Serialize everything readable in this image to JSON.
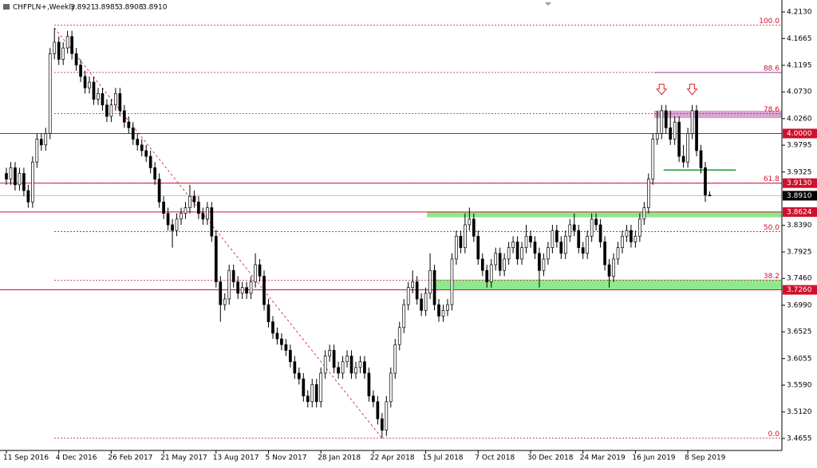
{
  "chart_data": {
    "type": "candlestick",
    "title": "CHFPLN+,Weekly",
    "close_label": "3.8910",
    "x": [
      "11 Sep 2016",
      null,
      null,
      null,
      null,
      null,
      null,
      null,
      null,
      null,
      null,
      null,
      "4 Dec 2016",
      null,
      null,
      null,
      null,
      null,
      null,
      null,
      null,
      null,
      null,
      null,
      "26 Feb 2017",
      null,
      null,
      null,
      null,
      null,
      null,
      null,
      null,
      null,
      null,
      null,
      "21 May 2017",
      null,
      null,
      null,
      null,
      null,
      null,
      null,
      null,
      null,
      null,
      null,
      "13 Aug 2017",
      null,
      null,
      null,
      null,
      null,
      null,
      null,
      null,
      null,
      null,
      null,
      "5 Nov 2017",
      null,
      null,
      null,
      null,
      null,
      null,
      null,
      null,
      null,
      null,
      null,
      "28 Jan 2018",
      null,
      null,
      null,
      null,
      null,
      null,
      null,
      null,
      null,
      null,
      null,
      "22 Apr 2018",
      null,
      null,
      null,
      null,
      null,
      null,
      null,
      null,
      null,
      null,
      null,
      "15 Jul 2018",
      null,
      null,
      null,
      null,
      null,
      null,
      null,
      null,
      null,
      null,
      null,
      "7 Oct 2018",
      null,
      null,
      null,
      null,
      null,
      null,
      null,
      null,
      null,
      null,
      null,
      "30 Dec 2018",
      null,
      null,
      null,
      null,
      null,
      null,
      null,
      null,
      null,
      null,
      null,
      "24 Mar 2019",
      null,
      null,
      null,
      null,
      null,
      null,
      null,
      null,
      null,
      null,
      null,
      "16 Jun 2019",
      null,
      null,
      null,
      null,
      null,
      null,
      null,
      null,
      null,
      null,
      null,
      "8 Sep 2019",
      null,
      null,
      null,
      null,
      null
    ],
    "open": [
      3.93,
      3.92,
      3.94,
      3.91,
      3.93,
      3.9,
      3.88,
      3.95,
      3.99,
      3.98,
      4.0,
      4.14,
      4.16,
      4.13,
      4.15,
      4.17,
      4.14,
      4.12,
      4.1,
      4.08,
      4.09,
      4.06,
      4.07,
      4.05,
      4.03,
      4.05,
      4.07,
      4.04,
      4.02,
      4.01,
      3.99,
      3.98,
      3.97,
      3.96,
      3.94,
      3.92,
      3.88,
      3.86,
      3.84,
      3.83,
      3.85,
      3.86,
      3.87,
      3.89,
      3.88,
      3.86,
      3.85,
      3.87,
      3.82,
      3.74,
      3.7,
      3.71,
      3.76,
      3.74,
      3.72,
      3.73,
      3.72,
      3.74,
      3.77,
      3.75,
      3.7,
      3.67,
      3.65,
      3.64,
      3.63,
      3.62,
      3.6,
      3.58,
      3.57,
      3.54,
      3.53,
      3.56,
      3.53,
      3.58,
      3.61,
      3.62,
      3.59,
      3.58,
      3.6,
      3.61,
      3.58,
      3.59,
      3.6,
      3.58,
      3.54,
      3.53,
      3.5,
      3.48,
      3.53,
      3.58,
      3.63,
      3.66,
      3.7,
      3.73,
      3.74,
      3.71,
      3.69,
      3.72,
      3.76,
      3.7,
      3.68,
      3.69,
      3.7,
      3.78,
      3.82,
      3.8,
      3.84,
      3.85,
      3.82,
      3.78,
      3.76,
      3.74,
      3.77,
      3.79,
      3.76,
      3.78,
      3.8,
      3.81,
      3.78,
      3.8,
      3.82,
      3.81,
      3.79,
      3.76,
      3.78,
      3.8,
      3.83,
      3.81,
      3.79,
      3.82,
      3.84,
      3.83,
      3.8,
      3.79,
      3.82,
      3.85,
      3.84,
      3.81,
      3.77,
      3.75,
      3.78,
      3.8,
      3.82,
      3.83,
      3.81,
      3.82,
      3.85,
      3.87,
      3.92,
      3.99,
      4.0,
      4.04,
      4.01,
      3.99,
      4.02,
      3.96,
      3.95,
      4.0,
      4.04,
      3.97,
      3.94,
      3.8921
    ],
    "high": [
      3.94,
      3.95,
      3.95,
      3.94,
      3.94,
      3.91,
      3.96,
      4.0,
      4.0,
      4.01,
      4.15,
      4.185,
      4.17,
      4.16,
      4.18,
      4.18,
      4.15,
      4.13,
      4.11,
      4.1,
      4.1,
      4.08,
      4.08,
      4.06,
      4.06,
      4.08,
      4.08,
      4.05,
      4.03,
      4.02,
      4.0,
      3.99,
      3.98,
      3.97,
      3.95,
      3.93,
      3.89,
      3.87,
      3.85,
      3.86,
      3.87,
      3.88,
      3.91,
      3.9,
      3.89,
      3.87,
      3.88,
      3.88,
      3.83,
      3.75,
      3.72,
      3.77,
      3.77,
      3.75,
      3.74,
      3.74,
      3.75,
      3.79,
      3.78,
      3.76,
      3.71,
      3.68,
      3.66,
      3.65,
      3.64,
      3.63,
      3.61,
      3.59,
      3.58,
      3.55,
      3.57,
      3.57,
      3.59,
      3.62,
      3.63,
      3.63,
      3.6,
      3.61,
      3.62,
      3.62,
      3.6,
      3.61,
      3.61,
      3.59,
      3.55,
      3.54,
      3.51,
      3.54,
      3.59,
      3.64,
      3.67,
      3.71,
      3.74,
      3.76,
      3.75,
      3.72,
      3.73,
      3.79,
      3.77,
      3.71,
      3.7,
      3.71,
      3.79,
      3.83,
      3.83,
      3.86,
      3.87,
      3.86,
      3.83,
      3.79,
      3.77,
      3.78,
      3.8,
      3.8,
      3.79,
      3.81,
      3.82,
      3.82,
      3.81,
      3.84,
      3.83,
      3.82,
      3.8,
      3.79,
      3.81,
      3.84,
      3.84,
      3.82,
      3.83,
      3.85,
      3.86,
      3.84,
      3.81,
      3.83,
      3.86,
      3.86,
      3.85,
      3.82,
      3.78,
      3.79,
      3.81,
      3.83,
      3.84,
      3.84,
      3.83,
      3.86,
      3.88,
      3.93,
      4.0,
      4.04,
      4.05,
      4.05,
      4.04,
      4.03,
      4.03,
      3.98,
      4.01,
      4.05,
      4.05,
      3.98,
      3.95,
      3.8985
    ],
    "low": [
      3.91,
      3.91,
      3.9,
      3.9,
      3.89,
      3.87,
      3.87,
      3.94,
      3.97,
      3.97,
      3.99,
      4.13,
      4.12,
      4.12,
      4.14,
      4.13,
      4.11,
      4.09,
      4.07,
      4.07,
      4.05,
      4.05,
      4.04,
      4.02,
      4.02,
      4.04,
      4.03,
      4.01,
      4.0,
      3.98,
      3.97,
      3.96,
      3.95,
      3.93,
      3.91,
      3.87,
      3.85,
      3.83,
      3.8,
      3.82,
      3.84,
      3.85,
      3.86,
      3.87,
      3.85,
      3.84,
      3.84,
      3.81,
      3.73,
      3.67,
      3.69,
      3.7,
      3.73,
      3.71,
      3.71,
      3.71,
      3.71,
      3.73,
      3.74,
      3.69,
      3.66,
      3.64,
      3.63,
      3.62,
      3.61,
      3.59,
      3.57,
      3.56,
      3.53,
      3.52,
      3.52,
      3.52,
      3.52,
      3.57,
      3.6,
      3.58,
      3.57,
      3.57,
      3.59,
      3.57,
      3.57,
      3.58,
      3.57,
      3.53,
      3.52,
      3.49,
      3.466,
      3.47,
      3.52,
      3.57,
      3.62,
      3.65,
      3.69,
      3.72,
      3.7,
      3.68,
      3.68,
      3.71,
      3.69,
      3.67,
      3.67,
      3.68,
      3.69,
      3.77,
      3.79,
      3.79,
      3.83,
      3.81,
      3.77,
      3.75,
      3.73,
      3.73,
      3.76,
      3.75,
      3.75,
      3.77,
      3.79,
      3.77,
      3.77,
      3.79,
      3.8,
      3.78,
      3.73,
      3.75,
      3.77,
      3.79,
      3.8,
      3.78,
      3.78,
      3.81,
      3.82,
      3.79,
      3.78,
      3.78,
      3.81,
      3.83,
      3.8,
      3.76,
      3.73,
      3.74,
      3.77,
      3.79,
      3.81,
      3.8,
      3.8,
      3.81,
      3.84,
      3.86,
      3.91,
      3.98,
      3.99,
      4.0,
      3.98,
      3.98,
      3.95,
      3.94,
      3.94,
      3.99,
      3.96,
      3.93,
      3.88,
      3.8908
    ],
    "close": [
      3.92,
      3.94,
      3.91,
      3.93,
      3.9,
      3.88,
      3.95,
      3.99,
      3.98,
      4.0,
      4.14,
      4.16,
      4.13,
      4.15,
      4.17,
      4.14,
      4.12,
      4.1,
      4.08,
      4.09,
      4.06,
      4.07,
      4.05,
      4.03,
      4.05,
      4.07,
      4.04,
      4.02,
      4.01,
      3.99,
      3.98,
      3.97,
      3.96,
      3.94,
      3.92,
      3.88,
      3.86,
      3.84,
      3.83,
      3.85,
      3.86,
      3.87,
      3.89,
      3.88,
      3.86,
      3.85,
      3.87,
      3.82,
      3.74,
      3.7,
      3.71,
      3.76,
      3.74,
      3.72,
      3.73,
      3.72,
      3.74,
      3.77,
      3.75,
      3.7,
      3.67,
      3.65,
      3.64,
      3.63,
      3.62,
      3.6,
      3.58,
      3.57,
      3.54,
      3.53,
      3.56,
      3.53,
      3.58,
      3.61,
      3.62,
      3.59,
      3.58,
      3.6,
      3.61,
      3.58,
      3.59,
      3.6,
      3.58,
      3.54,
      3.53,
      3.5,
      3.48,
      3.53,
      3.58,
      3.63,
      3.66,
      3.7,
      3.73,
      3.74,
      3.71,
      3.69,
      3.72,
      3.76,
      3.7,
      3.68,
      3.69,
      3.7,
      3.78,
      3.82,
      3.8,
      3.84,
      3.85,
      3.82,
      3.78,
      3.76,
      3.74,
      3.77,
      3.79,
      3.76,
      3.78,
      3.8,
      3.81,
      3.78,
      3.8,
      3.82,
      3.81,
      3.79,
      3.76,
      3.78,
      3.8,
      3.83,
      3.81,
      3.79,
      3.82,
      3.84,
      3.83,
      3.8,
      3.79,
      3.82,
      3.85,
      3.84,
      3.81,
      3.77,
      3.75,
      3.78,
      3.8,
      3.82,
      3.83,
      3.81,
      3.82,
      3.85,
      3.87,
      3.92,
      3.99,
      4.0,
      4.04,
      4.01,
      3.99,
      4.02,
      3.96,
      3.95,
      4.0,
      4.04,
      3.97,
      3.94,
      3.8921,
      3.891
    ],
    "ylim": [
      3.4445,
      4.2312
    ],
    "yticks": [
      {
        "value": 4.213,
        "label": "4.2130"
      },
      4.1665,
      4.1195,
      {
        "value": 4.073,
        "label": "4.0730"
      },
      {
        "value": 4.026,
        "label": "4.0260"
      },
      3.9795,
      3.9325,
      {
        "value": 3.839,
        "label": "3.8390"
      },
      3.7925,
      {
        "value": 3.746,
        "label": "3.7460"
      },
      {
        "value": 3.699,
        "label": "3.6990"
      },
      3.6525,
      3.6055,
      {
        "value": 3.559,
        "label": "3.5590"
      },
      {
        "value": 3.512,
        "label": "3.5120"
      },
      3.4655
    ],
    "levels": [
      {
        "value": 4.0,
        "label": "4.0000"
      },
      {
        "value": 3.913,
        "label": "3.9130"
      },
      3.8624,
      {
        "value": 3.726,
        "label": "3.7260"
      }
    ],
    "level_color": "#d0102c",
    "fib_levels": [
      {
        "label": "100.0",
        "price": 4.19
      },
      {
        "label": "88.6",
        "price": 4.107
      },
      {
        "label": "78.6",
        "price": 4.035
      },
      {
        "label": "61.8",
        "price": 3.913
      },
      {
        "label": "50.0",
        "price": 3.828
      },
      {
        "label": "38.2",
        "price": 3.743
      },
      {
        "label": "0.0",
        "price": 3.466
      }
    ],
    "zones": [
      {
        "low": 3.853,
        "high": 3.8624,
        "color": "#8ee88e"
      },
      {
        "low": 3.726,
        "high": 3.744,
        "color": "#8ee88e"
      },
      {
        "low": 4.027,
        "high": 4.04,
        "color": "#d8a6d0"
      }
    ],
    "support": 3.936
  }
}
